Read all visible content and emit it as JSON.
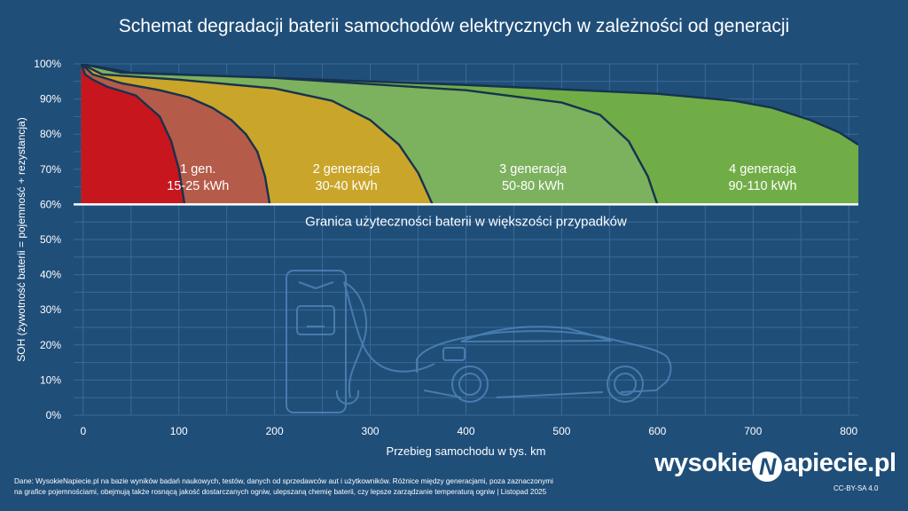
{
  "title": "Schemat degradacji baterii samochodów elektrycznych w zależności od generacji",
  "chart_data": {
    "type": "area",
    "xlabel": "Przebieg samochodu w tys. km",
    "ylabel": "SOH (żywotność baterii = pojemność + rezystancja)",
    "xlim": [
      -10,
      810
    ],
    "ylim": [
      0,
      100
    ],
    "x_ticks": [
      0,
      100,
      200,
      300,
      400,
      500,
      600,
      700,
      800
    ],
    "y_ticks": [
      0,
      10,
      20,
      30,
      40,
      50,
      60,
      70,
      80,
      90,
      100
    ],
    "y_tick_labels": [
      "0%",
      "10%",
      "20%",
      "30%",
      "40%",
      "50%",
      "60%",
      "70%",
      "80%",
      "90%",
      "100%"
    ],
    "grid": true,
    "threshold": {
      "y": 60,
      "label": "Granica użyteczności baterii w większości przypadków"
    },
    "series": [
      {
        "name": "1 gen.",
        "capacity": "15-25 kWh",
        "color": "#c8161e",
        "label_x": 120,
        "x": [
          -2,
          2,
          10,
          25,
          55,
          80,
          92,
          100,
          106
        ],
        "y": [
          100,
          97,
          95.5,
          93.5,
          91,
          85,
          78,
          70,
          60
        ]
      },
      {
        "name": "2 generacja",
        "capacity": "30-40 kWh",
        "color": "#b55b49",
        "label_x": 275,
        "x": [
          -2,
          10,
          40,
          80,
          110,
          135,
          155,
          170,
          182,
          190,
          195
        ],
        "y": [
          100,
          97,
          94.5,
          92.5,
          90.5,
          87.5,
          84,
          80,
          75,
          68,
          60
        ]
      },
      {
        "name": "3 generacja",
        "capacity": "50-80 kWh",
        "color": "#c9a52a",
        "label_x": 470,
        "x": [
          -2,
          20,
          100,
          200,
          260,
          300,
          330,
          350,
          360,
          365
        ],
        "y": [
          100,
          97,
          95.5,
          93,
          89.5,
          84,
          77,
          69,
          63,
          60
        ]
      },
      {
        "name": "4 generacja",
        "capacity": "90-110 kWh",
        "color": "#7cb15e",
        "label_x": 710,
        "x": [
          -2,
          40,
          200,
          400,
          500,
          540,
          570,
          590,
          600
        ],
        "y": [
          100,
          97.5,
          96,
          92.5,
          89,
          85.5,
          78,
          68,
          60
        ]
      },
      {
        "name": "",
        "capacity": "",
        "color": "#70ad47",
        "label_x": null,
        "x": [
          -2,
          50,
          200,
          400,
          600,
          680,
          720,
          760,
          790,
          810
        ],
        "y": [
          100,
          97.5,
          96,
          94,
          91.5,
          89.5,
          87.5,
          84,
          80.5,
          77
        ]
      }
    ]
  },
  "footnote": {
    "line1": "Dane: WysokieNapiecie.pl na bazie wyników badań naukowych, testów, danych od sprzedawców aut i użytkowników. Różnice między generacjami, poza zaznaczonymi",
    "line2": "na grafice pojemnościami, obejmują także rosnącą jakość dostarczanych ogniw, ulepszaną chemię baterii, czy lepsze zarządzanie temperaturą ogniw  |  Listopad 2025"
  },
  "logo": {
    "part1": "wysokie",
    "letter": "N",
    "part2": "apiecie.pl"
  },
  "license": "CC-BY-SA 4.0"
}
